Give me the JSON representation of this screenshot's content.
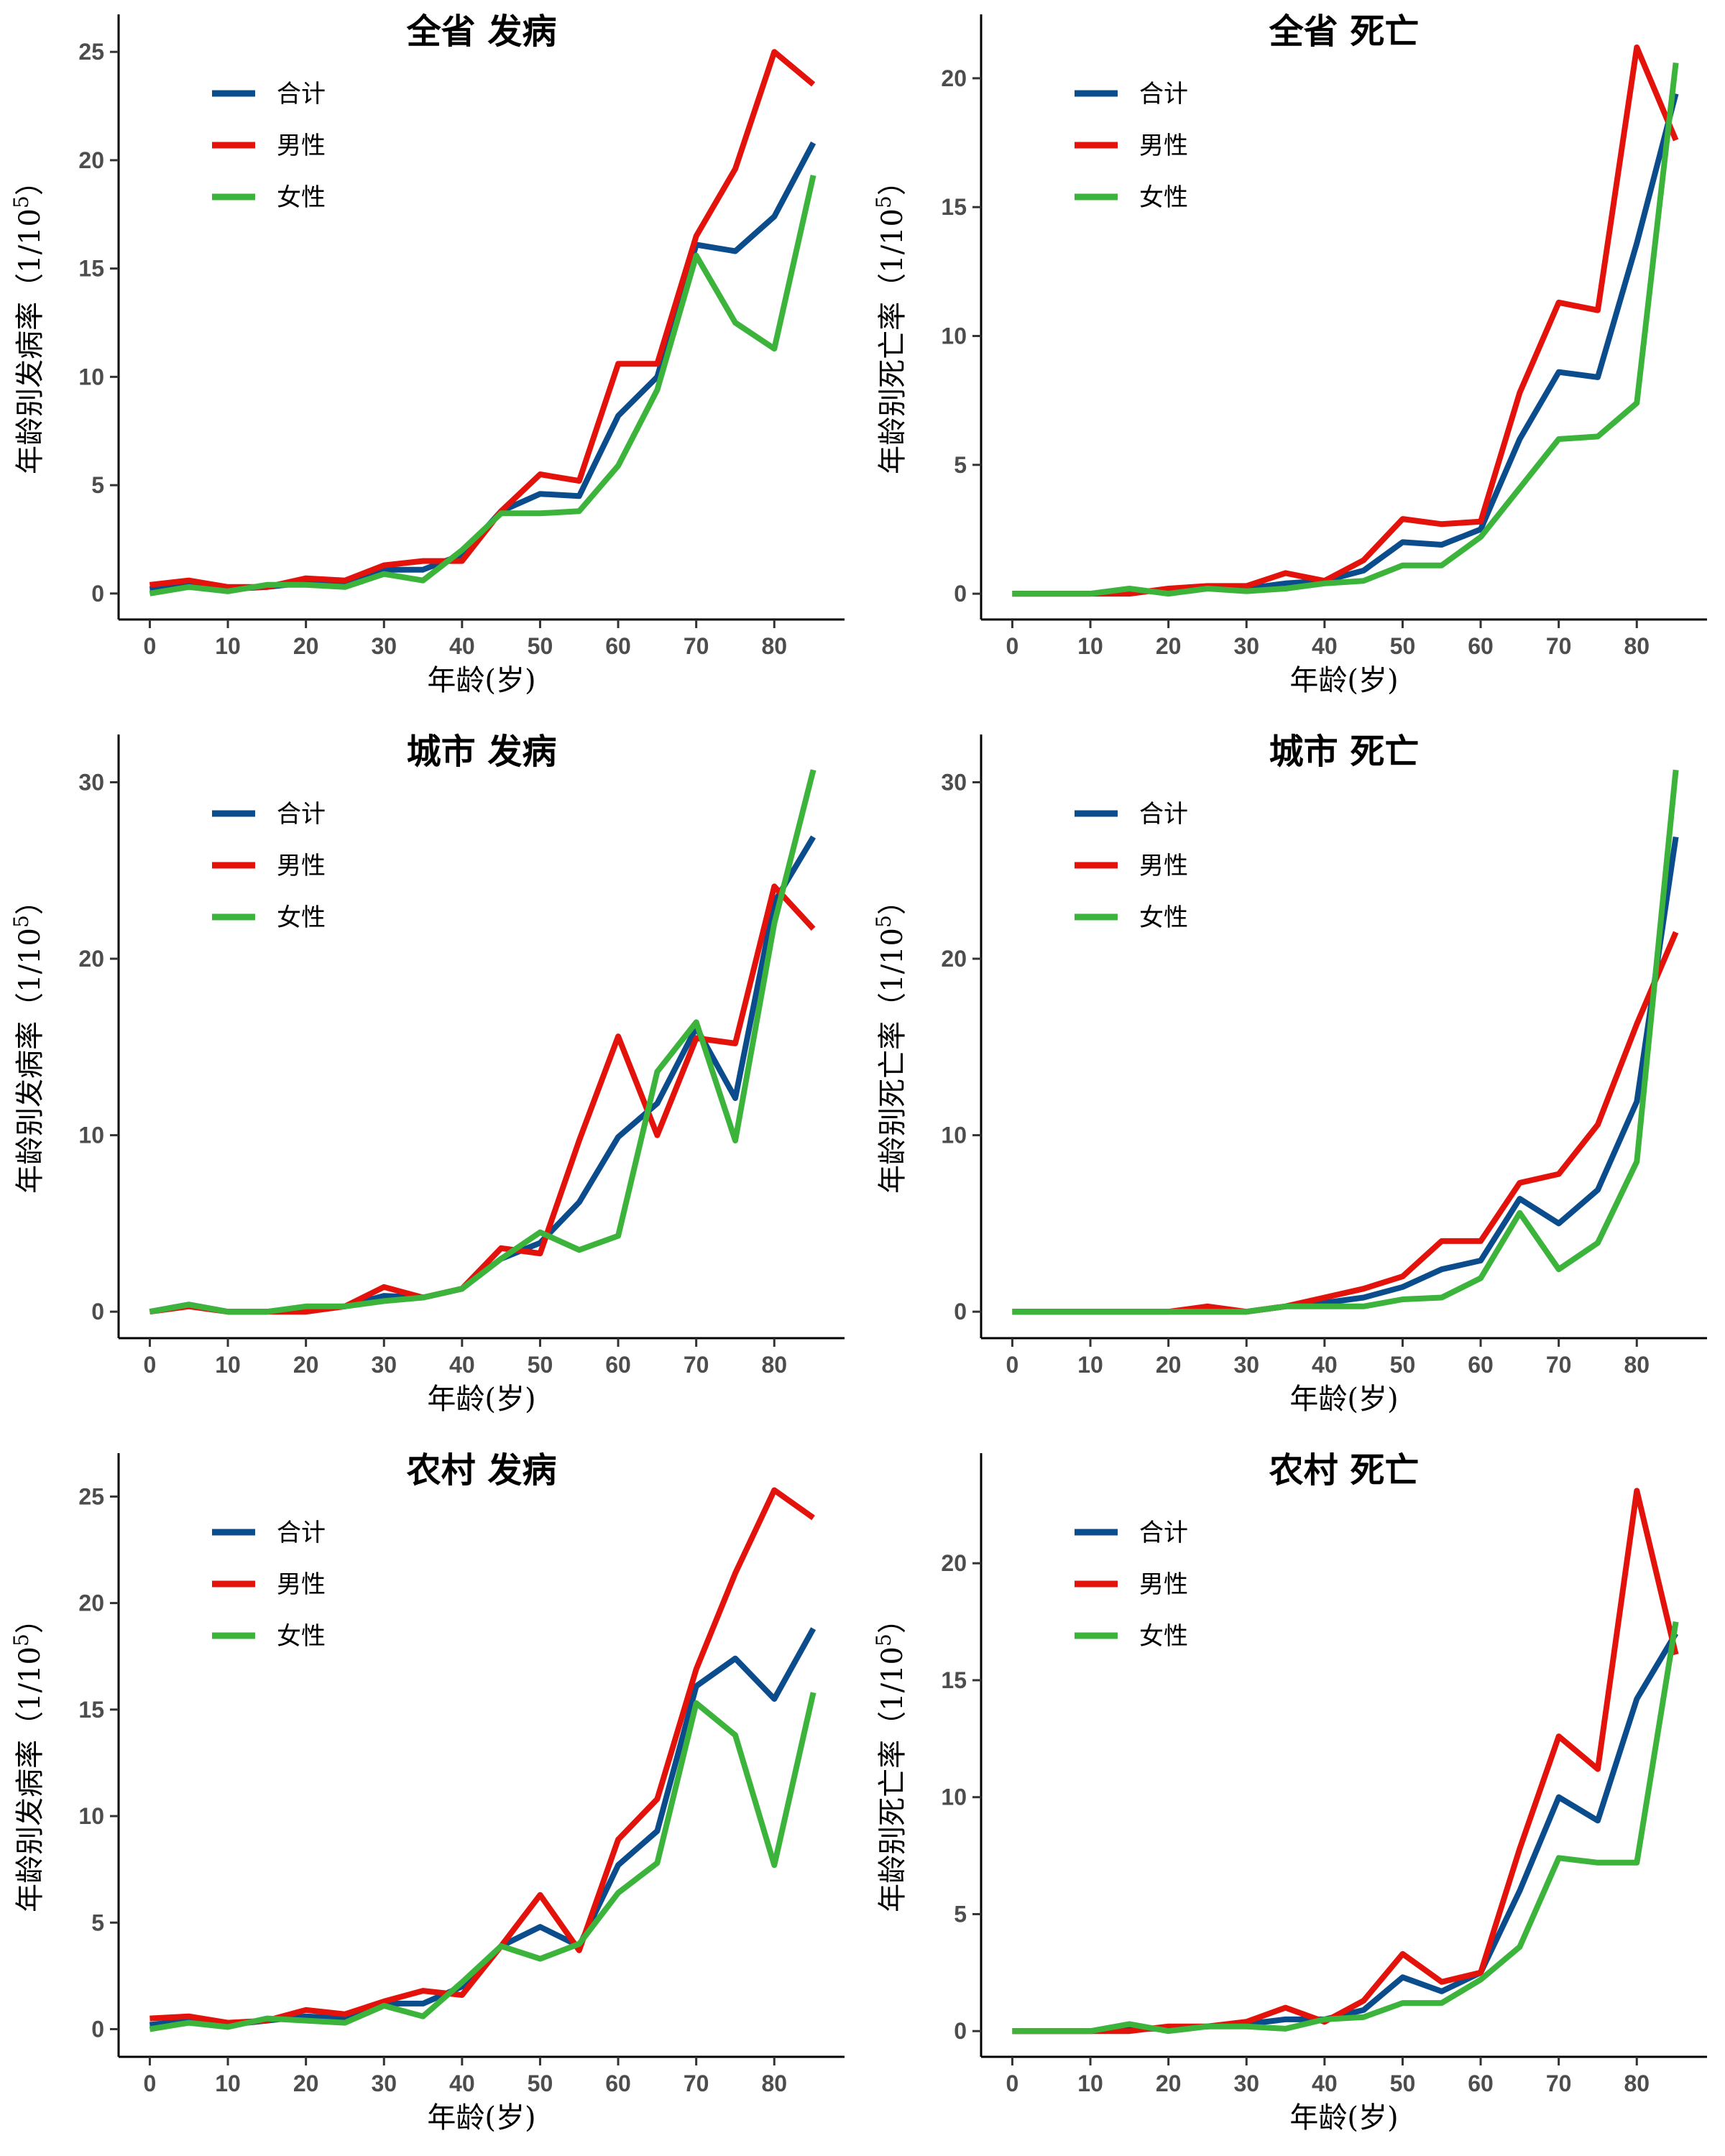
{
  "chart_data": [
    {
      "type": "line",
      "title": "全省 发病",
      "xlabel": "年龄(岁)",
      "ylabel": "年龄别发病率（1/10^5）",
      "ylabel_main": "年龄别发病率（1/10",
      "ylabel_exp": "5",
      "ylabel_close": "）",
      "x": [
        0,
        5,
        10,
        15,
        20,
        25,
        30,
        35,
        40,
        45,
        50,
        55,
        60,
        65,
        70,
        75,
        80,
        85
      ],
      "xlim": [
        -4,
        89
      ],
      "ylim": [
        -1.2,
        26.4
      ],
      "xticks": [
        0,
        10,
        20,
        30,
        40,
        50,
        60,
        70,
        80
      ],
      "yticks": [
        0,
        5,
        10,
        15,
        20,
        25
      ],
      "series": [
        {
          "name": "合计",
          "color": "#0b4c8c",
          "values": [
            0.2,
            0.4,
            0.2,
            0.3,
            0.5,
            0.4,
            1.1,
            1.1,
            1.8,
            3.8,
            4.6,
            4.5,
            8.2,
            10.0,
            16.1,
            15.8,
            17.4,
            20.8
          ]
        },
        {
          "name": "男性",
          "color": "#e3120b",
          "values": [
            0.4,
            0.6,
            0.3,
            0.3,
            0.7,
            0.6,
            1.3,
            1.5,
            1.5,
            3.8,
            5.5,
            5.2,
            10.6,
            10.6,
            16.5,
            19.6,
            25.0,
            23.5
          ]
        },
        {
          "name": "女性",
          "color": "#3cb43c",
          "values": [
            0.0,
            0.3,
            0.1,
            0.4,
            0.4,
            0.3,
            0.9,
            0.6,
            2.0,
            3.7,
            3.7,
            3.8,
            5.9,
            9.4,
            15.6,
            12.5,
            11.3,
            19.3
          ]
        }
      ]
    },
    {
      "type": "line",
      "title": "全省 死亡",
      "xlabel": "年龄(岁)",
      "ylabel": "年龄别死亡率（1/10^5）",
      "ylabel_main": "年龄别死亡率（1/10",
      "ylabel_exp": "5",
      "ylabel_close": "）",
      "x": [
        0,
        5,
        10,
        15,
        20,
        25,
        30,
        35,
        40,
        45,
        50,
        55,
        60,
        65,
        70,
        75,
        80,
        85
      ],
      "xlim": [
        -4,
        89
      ],
      "ylim": [
        -1.0,
        22.2
      ],
      "xticks": [
        0,
        10,
        20,
        30,
        40,
        50,
        60,
        70,
        80
      ],
      "yticks": [
        0,
        5,
        10,
        15,
        20
      ],
      "series": [
        {
          "name": "合计",
          "color": "#0b4c8c",
          "values": [
            0.0,
            0.0,
            0.0,
            0.1,
            0.1,
            0.2,
            0.2,
            0.4,
            0.5,
            0.9,
            2.0,
            1.9,
            2.5,
            6.0,
            8.6,
            8.4,
            13.6,
            19.4
          ]
        },
        {
          "name": "男性",
          "color": "#e3120b",
          "values": [
            0.0,
            0.0,
            0.0,
            0.0,
            0.2,
            0.3,
            0.3,
            0.8,
            0.5,
            1.3,
            2.9,
            2.7,
            2.8,
            7.8,
            11.3,
            11.0,
            21.2,
            17.6
          ]
        },
        {
          "name": "女性",
          "color": "#3cb43c",
          "values": [
            0.0,
            0.0,
            0.0,
            0.2,
            0.0,
            0.2,
            0.1,
            0.2,
            0.4,
            0.5,
            1.1,
            1.1,
            2.2,
            4.1,
            6.0,
            6.1,
            7.4,
            20.6
          ]
        }
      ]
    },
    {
      "type": "line",
      "title": "城市 发病",
      "xlabel": "年龄(岁)",
      "ylabel": "年龄别发病率（1/10^5）",
      "ylabel_main": "年龄别发病率（1/10",
      "ylabel_exp": "5",
      "ylabel_close": "）",
      "x": [
        0,
        5,
        10,
        15,
        20,
        25,
        30,
        35,
        40,
        45,
        50,
        55,
        60,
        65,
        70,
        75,
        80,
        85
      ],
      "xlim": [
        -4,
        89
      ],
      "ylim": [
        -1.5,
        32.3
      ],
      "xticks": [
        0,
        10,
        20,
        30,
        40,
        50,
        60,
        70,
        80
      ],
      "yticks": [
        0,
        10,
        20,
        30
      ],
      "series": [
        {
          "name": "合计",
          "color": "#0b4c8c",
          "values": [
            0.0,
            0.4,
            0.0,
            0.0,
            0.2,
            0.3,
            0.9,
            0.8,
            1.3,
            3.0,
            3.9,
            6.2,
            9.9,
            11.8,
            16.1,
            12.1,
            23.2,
            26.9
          ]
        },
        {
          "name": "男性",
          "color": "#e3120b",
          "values": [
            0.0,
            0.3,
            0.0,
            0.0,
            0.0,
            0.3,
            1.4,
            0.8,
            1.3,
            3.6,
            3.3,
            9.7,
            15.6,
            10.0,
            15.5,
            15.2,
            24.1,
            21.7
          ]
        },
        {
          "name": "女性",
          "color": "#3cb43c",
          "values": [
            0.0,
            0.4,
            0.0,
            0.0,
            0.3,
            0.3,
            0.6,
            0.8,
            1.3,
            3.0,
            4.5,
            3.5,
            4.3,
            13.6,
            16.4,
            9.7,
            22.0,
            30.7
          ]
        }
      ]
    },
    {
      "type": "line",
      "title": "城市 死亡",
      "xlabel": "年龄(岁)",
      "ylabel": "年龄别死亡率（1/10^5）",
      "ylabel_main": "年龄别死亡率（1/10",
      "ylabel_exp": "5",
      "ylabel_close": "）",
      "x": [
        0,
        5,
        10,
        15,
        20,
        25,
        30,
        35,
        40,
        45,
        50,
        55,
        60,
        65,
        70,
        75,
        80,
        85
      ],
      "xlim": [
        -4,
        89
      ],
      "ylim": [
        -1.5,
        32.3
      ],
      "xticks": [
        0,
        10,
        20,
        30,
        40,
        50,
        60,
        70,
        80
      ],
      "yticks": [
        0,
        10,
        20,
        30
      ],
      "series": [
        {
          "name": "合计",
          "color": "#0b4c8c",
          "values": [
            0.0,
            0.0,
            0.0,
            0.0,
            0.0,
            0.0,
            0.0,
            0.3,
            0.5,
            0.8,
            1.4,
            2.4,
            2.9,
            6.4,
            5.0,
            6.9,
            11.9,
            26.9
          ]
        },
        {
          "name": "男性",
          "color": "#e3120b",
          "values": [
            0.0,
            0.0,
            0.0,
            0.0,
            0.0,
            0.3,
            0.0,
            0.3,
            0.8,
            1.3,
            2.0,
            4.0,
            4.0,
            7.3,
            7.8,
            10.6,
            16.3,
            21.5
          ]
        },
        {
          "name": "女性",
          "color": "#3cb43c",
          "values": [
            0.0,
            0.0,
            0.0,
            0.0,
            0.0,
            0.0,
            0.0,
            0.3,
            0.3,
            0.3,
            0.7,
            0.8,
            1.9,
            5.6,
            2.4,
            3.9,
            8.5,
            30.7
          ]
        }
      ]
    },
    {
      "type": "line",
      "title": "农村 发病",
      "xlabel": "年龄(岁)",
      "ylabel": "年龄别发病率（1/10^5）",
      "ylabel_main": "年龄别发病率（1/10",
      "ylabel_exp": "5",
      "ylabel_close": "）",
      "x": [
        0,
        5,
        10,
        15,
        20,
        25,
        30,
        35,
        40,
        45,
        50,
        55,
        60,
        65,
        70,
        75,
        80,
        85
      ],
      "xlim": [
        -4,
        89
      ],
      "ylim": [
        -1.3,
        26.7
      ],
      "xticks": [
        0,
        10,
        20,
        30,
        40,
        50,
        60,
        70,
        80
      ],
      "yticks": [
        0,
        5,
        10,
        15,
        20,
        25
      ],
      "series": [
        {
          "name": "合计",
          "color": "#0b4c8c",
          "values": [
            0.2,
            0.4,
            0.2,
            0.4,
            0.6,
            0.5,
            1.2,
            1.2,
            2.0,
            3.9,
            4.8,
            3.9,
            7.7,
            9.3,
            16.1,
            17.4,
            15.5,
            18.8
          ]
        },
        {
          "name": "男性",
          "color": "#e3120b",
          "values": [
            0.5,
            0.6,
            0.3,
            0.4,
            0.9,
            0.7,
            1.3,
            1.8,
            1.6,
            3.9,
            6.3,
            3.7,
            8.9,
            10.8,
            16.9,
            21.4,
            25.3,
            24.0
          ]
        },
        {
          "name": "女性",
          "color": "#3cb43c",
          "values": [
            0.0,
            0.3,
            0.1,
            0.5,
            0.4,
            0.3,
            1.1,
            0.6,
            2.2,
            3.9,
            3.3,
            4.0,
            6.4,
            7.8,
            15.3,
            13.8,
            7.7,
            15.8
          ]
        }
      ]
    },
    {
      "type": "line",
      "title": "农村 死亡",
      "xlabel": "年龄(岁)",
      "ylabel": "年龄别死亡率（1/10^5）",
      "ylabel_main": "年龄别死亡率（1/10",
      "ylabel_exp": "5",
      "ylabel_close": "）",
      "x": [
        0,
        5,
        10,
        15,
        20,
        25,
        30,
        35,
        40,
        45,
        50,
        55,
        60,
        65,
        70,
        75,
        80,
        85
      ],
      "xlim": [
        -4,
        89
      ],
      "ylim": [
        -1.1,
        24.4
      ],
      "xticks": [
        0,
        10,
        20,
        30,
        40,
        50,
        60,
        70,
        80
      ],
      "yticks": [
        0,
        5,
        10,
        15,
        20
      ],
      "series": [
        {
          "name": "合计",
          "color": "#0b4c8c",
          "values": [
            0.0,
            0.0,
            0.0,
            0.1,
            0.1,
            0.2,
            0.3,
            0.5,
            0.5,
            0.9,
            2.3,
            1.7,
            2.5,
            6.0,
            10.0,
            9.0,
            14.2,
            17.0
          ]
        },
        {
          "name": "男性",
          "color": "#e3120b",
          "values": [
            0.0,
            0.0,
            0.0,
            0.0,
            0.2,
            0.2,
            0.4,
            1.0,
            0.4,
            1.3,
            3.3,
            2.1,
            2.5,
            7.8,
            12.6,
            11.2,
            23.1,
            16.1
          ]
        },
        {
          "name": "女性",
          "color": "#3cb43c",
          "values": [
            0.0,
            0.0,
            0.0,
            0.3,
            0.0,
            0.2,
            0.2,
            0.1,
            0.5,
            0.6,
            1.2,
            1.2,
            2.2,
            3.6,
            7.4,
            7.2,
            7.2,
            17.5
          ]
        }
      ]
    }
  ]
}
